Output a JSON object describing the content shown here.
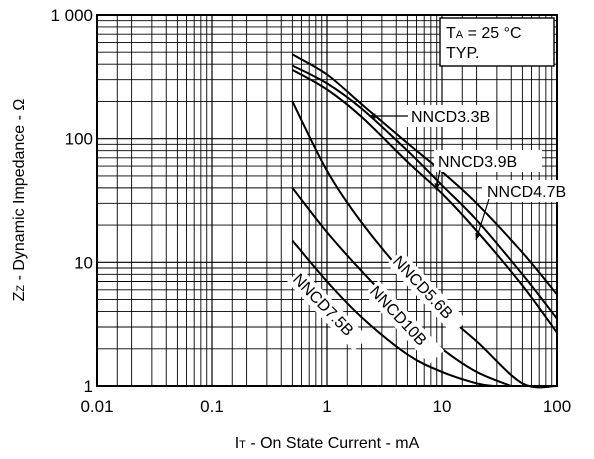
{
  "chart_data": {
    "type": "line",
    "title": "",
    "x_scale": "log",
    "y_scale": "log",
    "xlim": [
      0.01,
      100
    ],
    "ylim": [
      1,
      1000
    ],
    "grid": true,
    "x_ticks": [
      "0.01",
      "0.1",
      "1",
      "10",
      "100"
    ],
    "y_ticks": [
      "1",
      "10",
      "100",
      "1 000"
    ],
    "xlabel": {
      "symbol": "I",
      "sub": "T",
      "text": " -  On State Current  - mA"
    },
    "ylabel": {
      "symbol": "Z",
      "sub": "Z",
      "text": " -  Dynamic Impedance  - Ω"
    },
    "annotation": {
      "line1_prefix": "T",
      "line1_sub": "A",
      "line1_suffix": " = 25 °C",
      "line2": "TYP."
    },
    "series": [
      {
        "name": "NNCD3.3B",
        "x": [
          0.5,
          1,
          2,
          5,
          10,
          20,
          50,
          100
        ],
        "y": [
          360,
          250,
          150,
          65,
          36,
          18,
          6.5,
          2.7
        ]
      },
      {
        "name": "NNCD3.9B",
        "x": [
          0.5,
          1,
          2,
          5,
          10,
          20,
          50,
          100
        ],
        "y": [
          390,
          280,
          175,
          80,
          42,
          22,
          8,
          3.5
        ]
      },
      {
        "name": "NNCD4.7B",
        "x": [
          0.5,
          1,
          2,
          5,
          10,
          20,
          50,
          100
        ],
        "y": [
          480,
          330,
          190,
          92,
          54,
          30,
          12,
          5.5
        ]
      },
      {
        "name": "NNCD5.6B",
        "x": [
          0.5,
          1,
          2,
          5,
          10,
          20,
          50,
          100
        ],
        "y": [
          200,
          55,
          21,
          7.5,
          4,
          2.3,
          1.05,
          1.0
        ]
      },
      {
        "name": "NNCD10B",
        "x": [
          0.5,
          1,
          2,
          5,
          10,
          20,
          40
        ],
        "y": [
          40,
          17.5,
          8.5,
          3.5,
          2.0,
          1.3,
          1.0
        ]
      },
      {
        "name": "NNCD7.5B",
        "x": [
          0.5,
          1,
          2,
          5,
          10,
          20,
          28
        ],
        "y": [
          15,
          7.0,
          3.6,
          1.8,
          1.3,
          1.05,
          1.0
        ]
      }
    ],
    "curve_labels": [
      "NNCD3.3B",
      "NNCD3.9B",
      "NNCD4.7B",
      "NNCD5.6B",
      "NNCD10B",
      "NNCD7.5B"
    ]
  }
}
